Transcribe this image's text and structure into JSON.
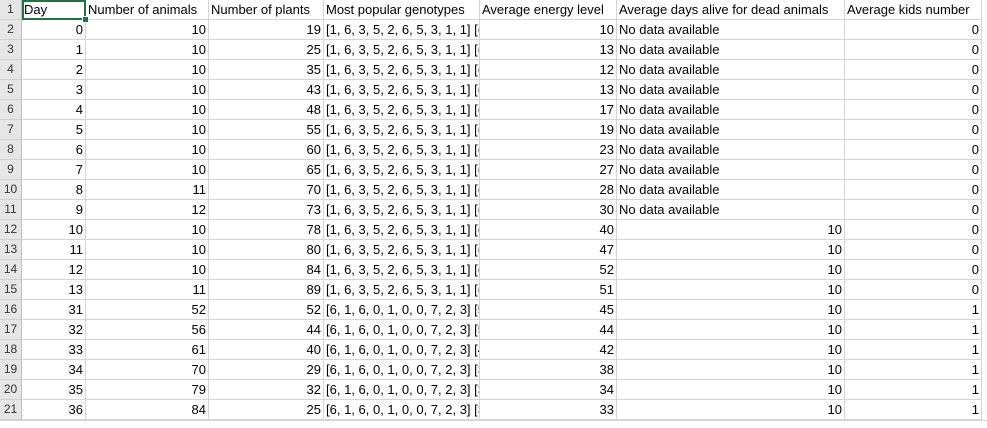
{
  "headers": [
    "Day",
    "Number of animals",
    "Number of plants",
    "Most popular genotypes",
    "Average energy level",
    "Average days alive for dead animals",
    "Average kids number"
  ],
  "row_numbers": [
    "1",
    "2",
    "3",
    "4",
    "5",
    "6",
    "7",
    "8",
    "9",
    "10",
    "11",
    "12",
    "13",
    "14",
    "15",
    "16",
    "17",
    "18",
    "19",
    "20",
    "21"
  ],
  "rows": [
    [
      "0",
      "10",
      "19",
      "[1, 6, 3, 5, 2, 6, 5, 3, 1, 1] [(",
      "10",
      "No data available",
      "0"
    ],
    [
      "1",
      "10",
      "25",
      "[1, 6, 3, 5, 2, 6, 5, 3, 1, 1] [(",
      "13",
      "No data available",
      "0"
    ],
    [
      "2",
      "10",
      "35",
      "[1, 6, 3, 5, 2, 6, 5, 3, 1, 1] [(",
      "12",
      "No data available",
      "0"
    ],
    [
      "3",
      "10",
      "43",
      "[1, 6, 3, 5, 2, 6, 5, 3, 1, 1] [(",
      "13",
      "No data available",
      "0"
    ],
    [
      "4",
      "10",
      "48",
      "[1, 6, 3, 5, 2, 6, 5, 3, 1, 1] [(",
      "17",
      "No data available",
      "0"
    ],
    [
      "5",
      "10",
      "55",
      "[1, 6, 3, 5, 2, 6, 5, 3, 1, 1] [(",
      "19",
      "No data available",
      "0"
    ],
    [
      "6",
      "10",
      "60",
      "[1, 6, 3, 5, 2, 6, 5, 3, 1, 1] [(",
      "23",
      "No data available",
      "0"
    ],
    [
      "7",
      "10",
      "65",
      "[1, 6, 3, 5, 2, 6, 5, 3, 1, 1] [(",
      "27",
      "No data available",
      "0"
    ],
    [
      "8",
      "11",
      "70",
      "[1, 6, 3, 5, 2, 6, 5, 3, 1, 1] [(",
      "28",
      "No data available",
      "0"
    ],
    [
      "9",
      "12",
      "73",
      "[1, 6, 3, 5, 2, 6, 5, 3, 1, 1] [(",
      "30",
      "No data available",
      "0"
    ],
    [
      "10",
      "10",
      "78",
      "[1, 6, 3, 5, 2, 6, 5, 3, 1, 1] [(",
      "40",
      "10",
      "0"
    ],
    [
      "11",
      "10",
      "80",
      "[1, 6, 3, 5, 2, 6, 5, 3, 1, 1] [(",
      "47",
      "10",
      "0"
    ],
    [
      "12",
      "10",
      "84",
      "[1, 6, 3, 5, 2, 6, 5, 3, 1, 1] [(",
      "52",
      "10",
      "0"
    ],
    [
      "13",
      "11",
      "89",
      "[1, 6, 3, 5, 2, 6, 5, 3, 1, 1] [(",
      "51",
      "10",
      "0"
    ],
    [
      "31",
      "52",
      "52",
      "[6, 1, 6, 0, 1, 0, 0, 7, 2, 3] [5",
      "45",
      "10",
      "1"
    ],
    [
      "32",
      "56",
      "44",
      "[6, 1, 6, 0, 1, 0, 0, 7, 2, 3] [5",
      "44",
      "10",
      "1"
    ],
    [
      "33",
      "61",
      "40",
      "[6, 1, 6, 0, 1, 0, 0, 7, 2, 3] [4",
      "42",
      "10",
      "1"
    ],
    [
      "34",
      "70",
      "29",
      "[6, 1, 6, 0, 1, 0, 0, 7, 2, 3] [3",
      "38",
      "10",
      "1"
    ],
    [
      "35",
      "79",
      "32",
      "[6, 1, 6, 0, 1, 0, 0, 7, 2, 3] [3",
      "34",
      "10",
      "1"
    ],
    [
      "36",
      "84",
      "25",
      "[6, 1, 6, 0, 1, 0, 0, 7, 2, 3] [3",
      "33",
      "10",
      "1"
    ]
  ],
  "colors": {
    "selection": "#217346",
    "gridline": "#d4d4d4",
    "row_header_bg": "#e6e6e6"
  }
}
